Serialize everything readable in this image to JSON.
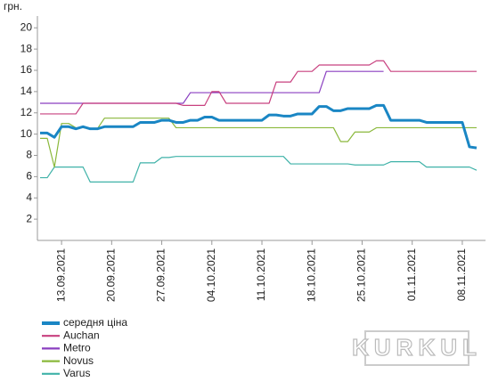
{
  "chart_data": {
    "type": "line",
    "y_label": "грн.",
    "watermark": "KURKUL",
    "categories": [
      null,
      null,
      null,
      "13.09.2021",
      null,
      null,
      null,
      null,
      null,
      null,
      "20.09.2021",
      null,
      null,
      null,
      null,
      null,
      null,
      "27.09.2021",
      null,
      null,
      null,
      null,
      null,
      null,
      "04.10.2021",
      null,
      null,
      null,
      null,
      null,
      null,
      "11.10.2021",
      null,
      null,
      null,
      null,
      null,
      null,
      "18.10.2021",
      null,
      null,
      null,
      null,
      null,
      null,
      "25.10.2021",
      null,
      null,
      null,
      null,
      null,
      null,
      "01.11.2021",
      null,
      null,
      null,
      null,
      null,
      null,
      "08.11.2021",
      null,
      null
    ],
    "ylim": [
      0,
      21
    ],
    "yticks": [
      2,
      4,
      6,
      8,
      10,
      12,
      14,
      16,
      18,
      20
    ],
    "grid": false,
    "series": [
      {
        "name": "середня ціна",
        "color": "#1a86c4",
        "width": 3,
        "values": [
          10.1,
          10.1,
          9.7,
          10.7,
          10.7,
          10.5,
          10.7,
          10.5,
          10.5,
          10.7,
          10.7,
          10.7,
          10.7,
          10.7,
          11.1,
          11.1,
          11.1,
          11.3,
          11.3,
          11.1,
          11.1,
          11.3,
          11.3,
          11.6,
          11.6,
          11.3,
          11.3,
          11.3,
          11.3,
          11.3,
          11.3,
          11.3,
          11.8,
          11.8,
          11.7,
          11.7,
          11.9,
          11.9,
          11.9,
          12.6,
          12.6,
          12.2,
          12.2,
          12.4,
          12.4,
          12.4,
          12.4,
          12.7,
          12.7,
          11.3,
          11.3,
          11.3,
          11.3,
          11.3,
          11.1,
          11.1,
          11.1,
          11.1,
          11.1,
          11.1,
          8.8,
          8.7
        ]
      },
      {
        "name": "Auchan",
        "color": "#c8407f",
        "width": 1.2,
        "values": [
          11.9,
          11.9,
          11.9,
          11.9,
          11.9,
          11.9,
          12.9,
          12.9,
          12.9,
          12.9,
          12.9,
          12.9,
          12.9,
          12.9,
          12.9,
          12.9,
          12.9,
          12.9,
          12.9,
          12.9,
          12.7,
          12.7,
          12.7,
          12.7,
          14.0,
          14.0,
          12.9,
          12.9,
          12.9,
          12.9,
          12.9,
          12.9,
          12.9,
          14.9,
          14.9,
          14.9,
          15.9,
          15.9,
          15.9,
          16.5,
          16.5,
          16.5,
          16.5,
          16.5,
          16.5,
          16.5,
          16.5,
          16.9,
          16.9,
          15.9,
          15.9,
          15.9,
          15.9,
          15.9,
          15.9,
          15.9,
          15.9,
          15.9,
          15.9,
          15.9,
          15.9,
          15.9
        ]
      },
      {
        "name": "Metro",
        "color": "#8a3fc0",
        "width": 1.2,
        "values": [
          12.9,
          12.9,
          12.9,
          12.9,
          12.9,
          12.9,
          12.9,
          12.9,
          12.9,
          12.9,
          12.9,
          12.9,
          12.9,
          12.9,
          12.9,
          12.9,
          12.9,
          12.9,
          12.9,
          12.9,
          12.9,
          13.9,
          13.9,
          13.9,
          13.9,
          13.9,
          13.9,
          13.9,
          13.9,
          13.9,
          13.9,
          13.9,
          13.9,
          13.9,
          13.9,
          13.9,
          13.9,
          13.9,
          13.9,
          13.9,
          15.9,
          15.9,
          15.9,
          15.9,
          15.9,
          15.9,
          15.9,
          15.9,
          15.9,
          null,
          null,
          null,
          null,
          null,
          null,
          null,
          null,
          null,
          null,
          null,
          null,
          null
        ]
      },
      {
        "name": "Novus",
        "color": "#8ab83b",
        "width": 1.2,
        "values": [
          9.6,
          9.6,
          6.9,
          11.0,
          11.0,
          10.6,
          10.6,
          10.5,
          10.5,
          11.5,
          11.5,
          11.5,
          11.5,
          11.5,
          11.5,
          11.5,
          11.5,
          11.5,
          11.5,
          10.6,
          10.6,
          10.6,
          10.6,
          10.6,
          10.6,
          10.6,
          10.6,
          10.6,
          10.6,
          10.6,
          10.6,
          10.6,
          10.6,
          10.6,
          10.6,
          10.6,
          10.6,
          10.6,
          10.6,
          10.6,
          10.6,
          10.6,
          9.3,
          9.3,
          10.2,
          10.2,
          10.2,
          10.6,
          10.6,
          10.6,
          10.6,
          10.6,
          10.6,
          10.6,
          10.6,
          10.6,
          10.6,
          10.6,
          10.6,
          10.6,
          10.6,
          10.6
        ]
      },
      {
        "name": "Varus",
        "color": "#3fb2a8",
        "width": 1.2,
        "values": [
          5.9,
          5.9,
          6.9,
          6.9,
          6.9,
          6.9,
          6.9,
          5.5,
          5.5,
          5.5,
          5.5,
          5.5,
          5.5,
          5.5,
          7.3,
          7.3,
          7.3,
          7.8,
          7.8,
          7.9,
          7.9,
          7.9,
          7.9,
          7.9,
          7.9,
          7.9,
          7.9,
          7.9,
          7.9,
          7.9,
          7.9,
          7.9,
          7.9,
          7.9,
          7.9,
          7.2,
          7.2,
          7.2,
          7.2,
          7.2,
          7.2,
          7.2,
          7.2,
          7.2,
          7.1,
          7.1,
          7.1,
          7.1,
          7.1,
          7.4,
          7.4,
          7.4,
          7.4,
          7.4,
          6.9,
          6.9,
          6.9,
          6.9,
          6.9,
          6.9,
          6.9,
          6.6
        ]
      }
    ]
  }
}
